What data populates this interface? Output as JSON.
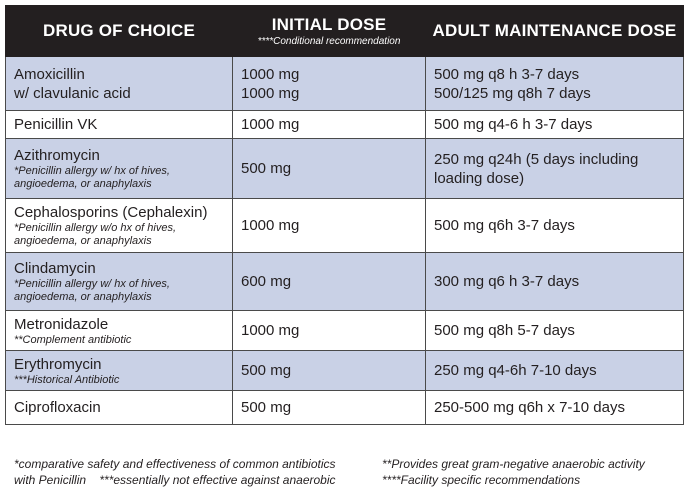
{
  "header": {
    "col1": "DRUG OF CHOICE",
    "col2": "INITIAL DOSE",
    "col2_note": "****Conditional recommendation",
    "col3": "ADULT MAINTENANCE DOSE"
  },
  "rows": [
    {
      "drug": "Amoxicillin",
      "drug_line2": "w/ clavulanic acid",
      "note": "",
      "initial": [
        "1000 mg",
        "1000 mg"
      ],
      "maintenance": [
        "500 mg q8 h 3-7 days",
        "500/125 mg q8h 7 days"
      ]
    },
    {
      "drug": "Penicillin VK",
      "drug_line2": "",
      "note": "",
      "initial": [
        "1000 mg"
      ],
      "maintenance": [
        "500 mg q4-6 h 3-7 days"
      ]
    },
    {
      "drug": "Azithromycin",
      "drug_line2": "",
      "note": "*Penicillin allergy w/ hx of hives, angioedema, or anaphylaxis",
      "initial": [
        "500 mg"
      ],
      "maintenance": [
        "250 mg q24h (5 days including",
        "loading dose)"
      ]
    },
    {
      "drug": "Cephalosporins (Cephalexin)",
      "drug_line2": "",
      "note": "*Penicillin allergy w/o hx of hives, angioedema, or anaphylaxis",
      "initial": [
        "1000 mg"
      ],
      "maintenance": [
        "500 mg q6h 3-7 days"
      ]
    },
    {
      "drug": "Clindamycin",
      "drug_line2": "",
      "note": "*Penicillin allergy w/ hx of hives, angioedema, or anaphylaxis",
      "initial": [
        "600 mg"
      ],
      "maintenance": [
        "300 mg q6 h 3-7 days"
      ]
    },
    {
      "drug": "Metronidazole",
      "drug_line2": "",
      "note": "**Complement antibiotic",
      "initial": [
        "1000 mg"
      ],
      "maintenance": [
        "500 mg q8h 5-7 days"
      ]
    },
    {
      "drug": "Erythromycin",
      "drug_line2": "",
      "note": "***Historical Antibiotic",
      "initial": [
        "500 mg"
      ],
      "maintenance": [
        "250 mg q4-6h 7-10 days"
      ]
    },
    {
      "drug": "Ciprofloxacin",
      "drug_line2": "",
      "note": "",
      "initial": [
        "500 mg"
      ],
      "maintenance": [
        "250-500 mg q6h x 7-10 days"
      ]
    }
  ],
  "footnotes": {
    "left_line1": "*comparative safety and effectiveness of common antibiotics",
    "left_line2": "with Penicillin    ***essentially not effective against anaerobic",
    "right_line1": "**Provides great gram-negative anaerobic activity",
    "right_line2": "****Facility specific recommendations"
  },
  "colors": {
    "header_bg": "#231f20",
    "row_shade": "#c9d1e6",
    "row_plain": "#ffffff"
  }
}
